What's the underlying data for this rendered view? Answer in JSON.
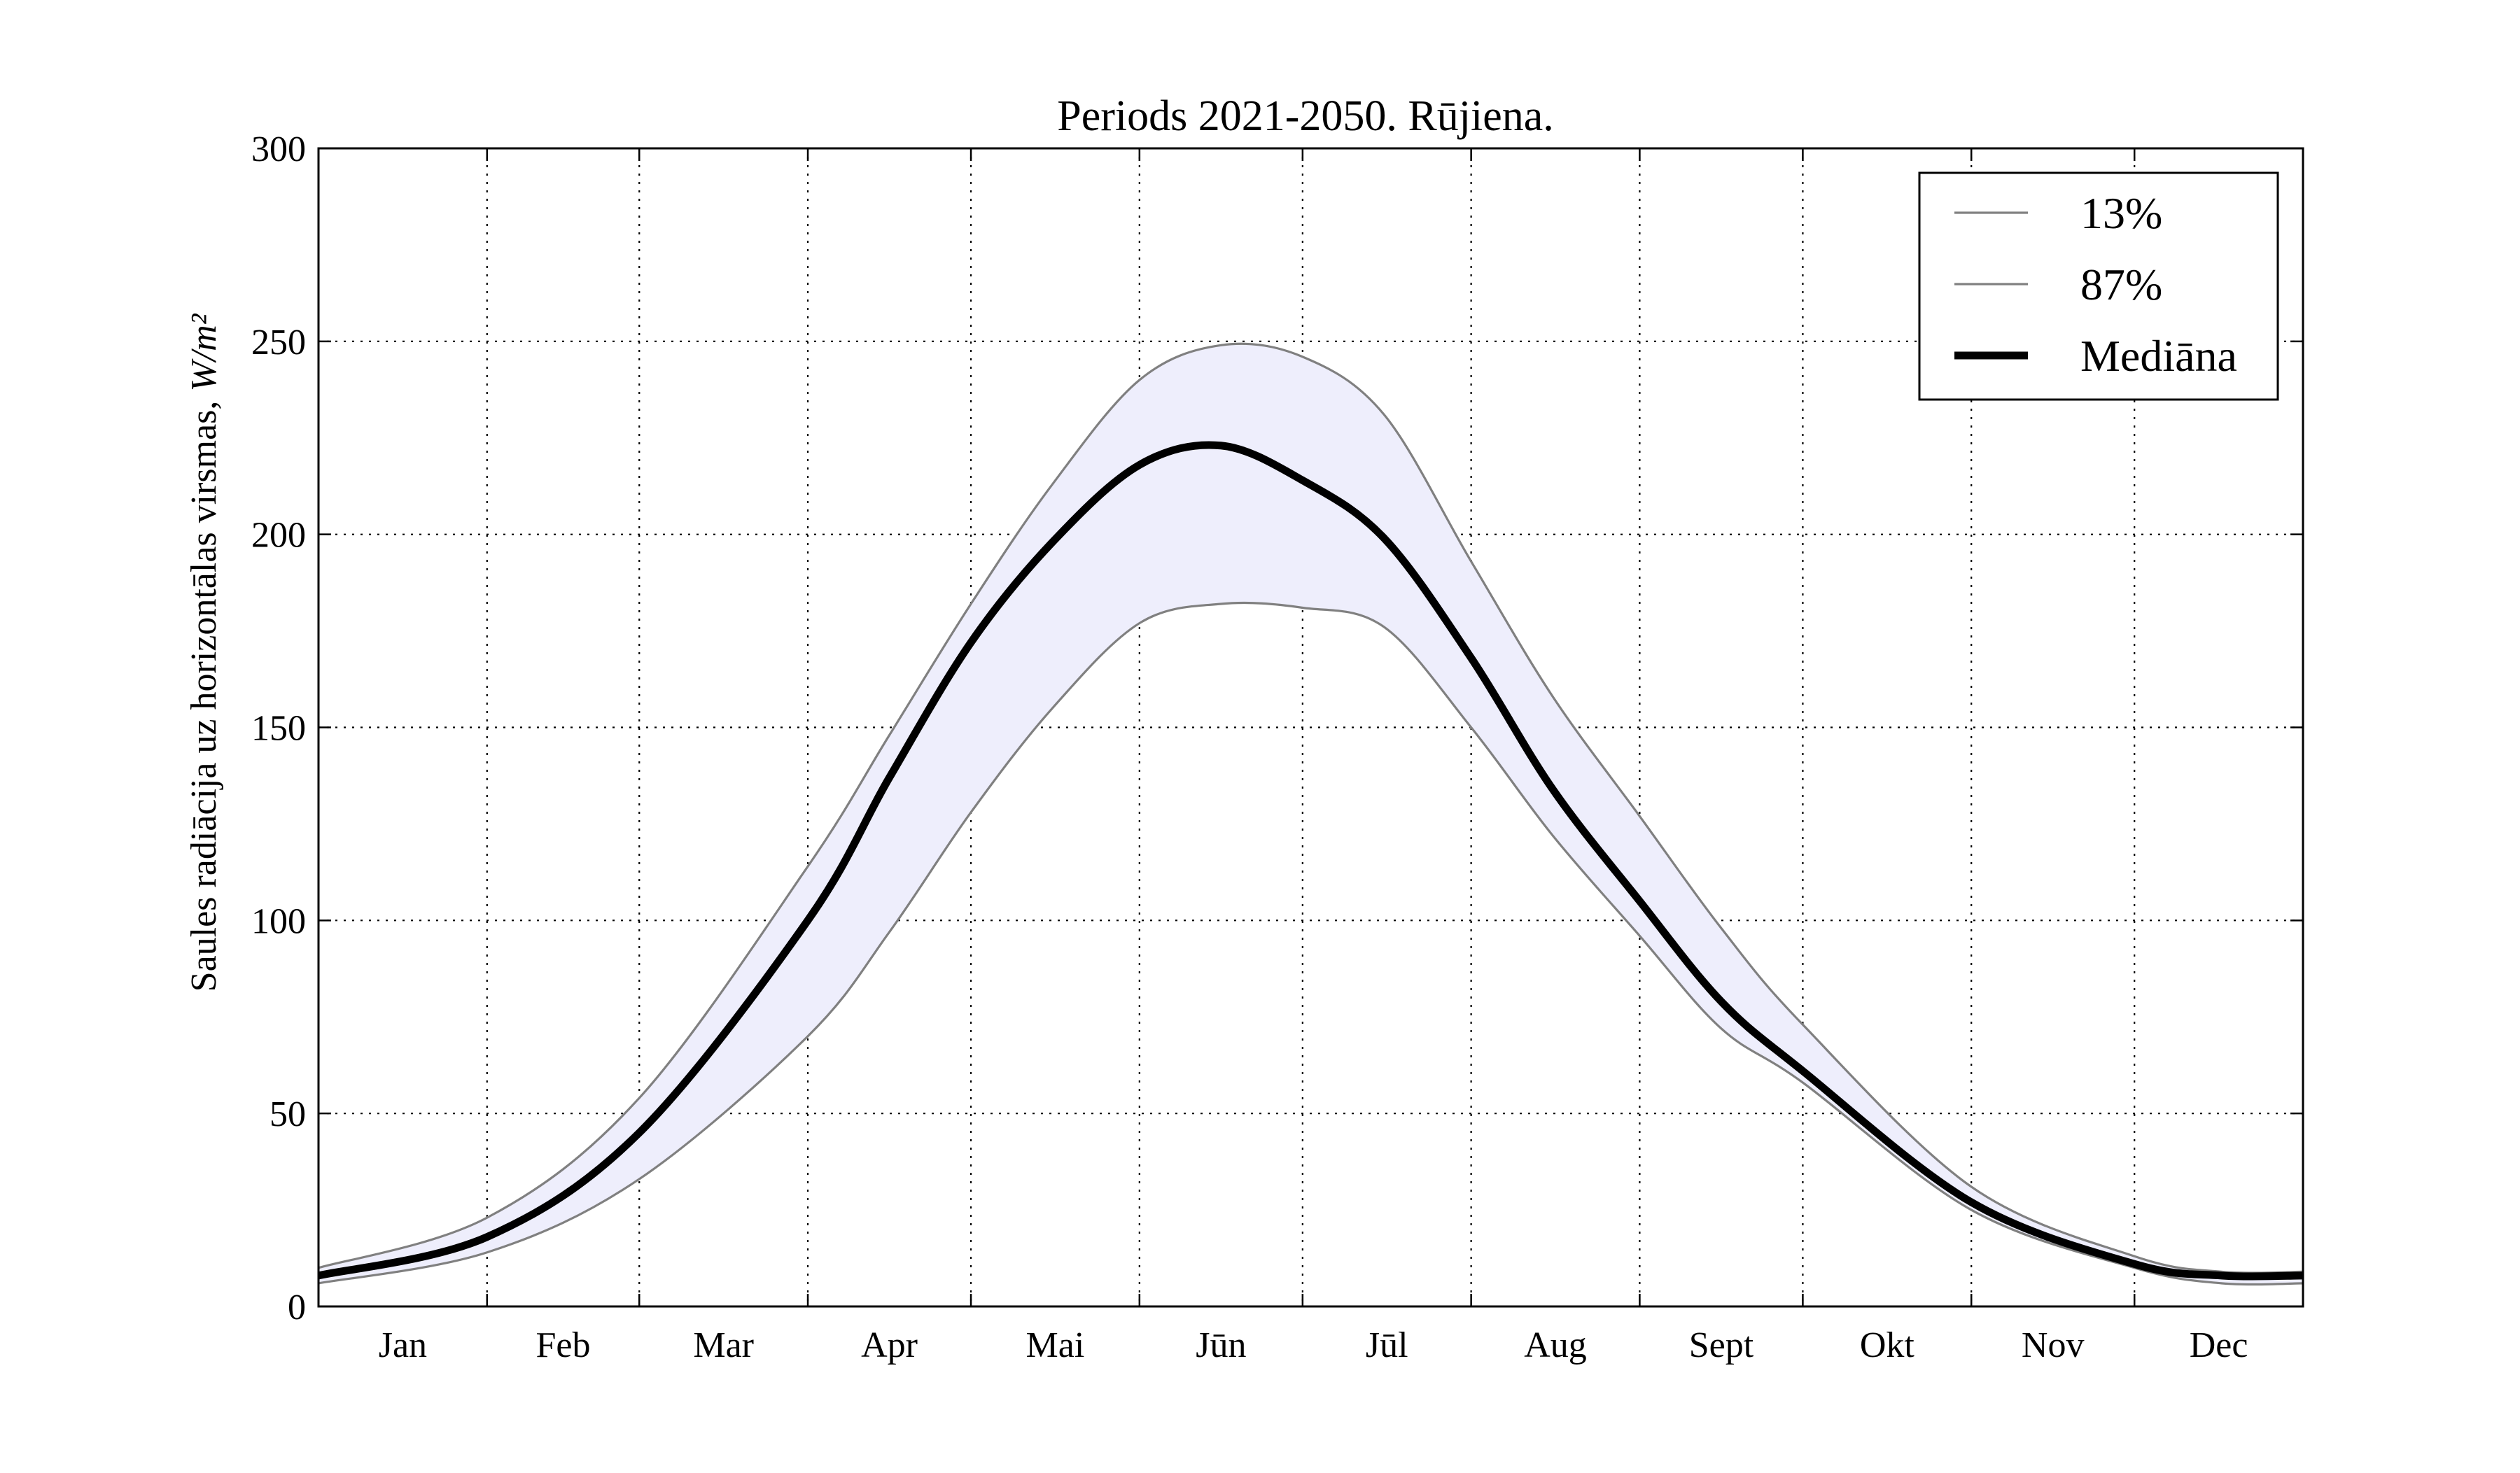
{
  "chart_data": {
    "type": "line",
    "title": "Periods 2021-2050. Rūjiena.",
    "ylabel_text": "Saules radiācija uz horizontālas virsmas, ",
    "ylabel_unit": "W/m²",
    "xlabel": "",
    "ylim": [
      0,
      300
    ],
    "xlim": [
      0,
      365
    ],
    "yticks": [
      0,
      50,
      100,
      150,
      200,
      250,
      300
    ],
    "grid": true,
    "legend_position": "top-right",
    "months": [
      {
        "label": "Jan",
        "start": 0,
        "end": 31
      },
      {
        "label": "Feb",
        "start": 31,
        "end": 59
      },
      {
        "label": "Mar",
        "start": 59,
        "end": 90
      },
      {
        "label": "Apr",
        "start": 90,
        "end": 120
      },
      {
        "label": "Mai",
        "start": 120,
        "end": 151
      },
      {
        "label": "Jūn",
        "start": 151,
        "end": 181
      },
      {
        "label": "Jūl",
        "start": 181,
        "end": 212
      },
      {
        "label": "Aug",
        "start": 212,
        "end": 243
      },
      {
        "label": "Sept",
        "start": 243,
        "end": 273
      },
      {
        "label": "Okt",
        "start": 273,
        "end": 304
      },
      {
        "label": "Nov",
        "start": 304,
        "end": 334
      },
      {
        "label": "Dec",
        "start": 334,
        "end": 365
      }
    ],
    "x": [
      0,
      31,
      59,
      90,
      105,
      120,
      135,
      151,
      166,
      181,
      196,
      212,
      227,
      243,
      258,
      273,
      304,
      334,
      350,
      365
    ],
    "series": [
      {
        "name": "13%",
        "color": "#808080",
        "style": "thin",
        "values": [
          6,
          14,
          33,
          70,
          97,
          128,
          155,
          177,
          182,
          181,
          176,
          150,
          122,
          96,
          72,
          58,
          25,
          10,
          6,
          6
        ]
      },
      {
        "name": "87%",
        "color": "#808080",
        "style": "thin",
        "values": [
          10,
          23,
          54,
          114,
          148,
          182,
          213,
          240,
          249,
          246,
          231,
          193,
          158,
          127,
          98,
          73,
          31,
          13,
          9,
          9
        ]
      },
      {
        "name": "Mediāna",
        "color": "#000000",
        "style": "thick",
        "values": [
          8,
          18,
          45,
          100,
          137,
          172,
          198,
          218,
          223,
          214,
          199,
          168,
          134,
          105,
          79,
          61,
          27,
          11,
          8,
          8
        ]
      }
    ],
    "band_color": "#eeeefc"
  }
}
